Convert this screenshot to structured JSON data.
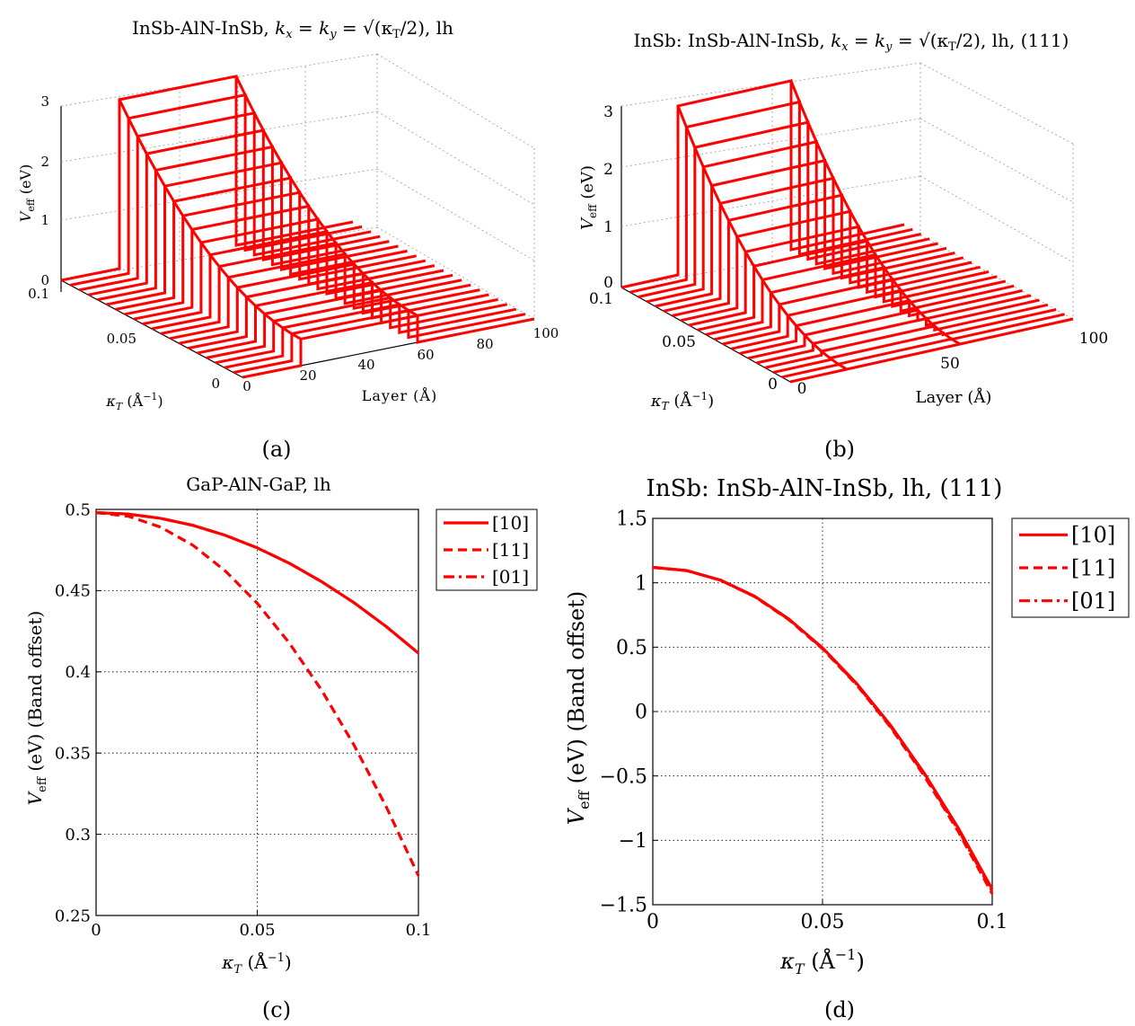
{
  "chart_data": [
    {
      "panel": "a",
      "type": "line",
      "projection": "3d",
      "title": "InSb-AlN-InSb, k_x = k_y = √(κ_T/2), lh",
      "caption": "(a)",
      "zlabel": "V_eff (eV)",
      "xlabel": "Layer (Å)",
      "ylabel": "κ_T (Å⁻¹)",
      "z_ticks": [
        "0",
        "1",
        "2",
        "3"
      ],
      "x_ticks": [
        "0",
        "20",
        "40",
        "60",
        "80",
        "100"
      ],
      "y_ticks": [
        "0",
        "0.05",
        "0.1"
      ],
      "zlim": [
        0,
        3
      ],
      "xlim": [
        0,
        100
      ],
      "ylim": [
        0,
        0.1
      ],
      "barrier_region": [
        20,
        60
      ],
      "barrier_height_at_kmax": 2.85,
      "barrier_height_at_k0": 0.45,
      "num_slices": 21
    },
    {
      "panel": "b",
      "type": "line",
      "projection": "3d",
      "title": "InSb: InSb-AlN-InSb, k_x = k_y = √(κ_T/2), lh, (111)",
      "caption": "(b)",
      "zlabel": "V_eff (eV)",
      "xlabel": "Layer (Å)",
      "ylabel": "κ_T (Å⁻¹)",
      "z_ticks": [
        "0",
        "1",
        "2",
        "3"
      ],
      "x_ticks": [
        "0",
        "50",
        "100"
      ],
      "y_ticks": [
        "0",
        "0.05",
        "0.1"
      ],
      "zlim": [
        0,
        3
      ],
      "xlim": [
        0,
        100
      ],
      "ylim": [
        0,
        0.1
      ],
      "barrier_region": [
        20,
        60
      ],
      "barrier_height_at_kmax": 2.85,
      "barrier_height_at_k0": 0.0,
      "num_slices": 21
    },
    {
      "panel": "c",
      "type": "line",
      "title": "GaP-AlN-GaP, lh",
      "caption": "(c)",
      "xlabel": "κ_T (Å⁻¹)",
      "ylabel": "V_eff (eV) (Band offset)",
      "xlim": [
        0,
        0.1
      ],
      "ylim": [
        0.25,
        0.5
      ],
      "x_ticks": [
        0,
        0.05,
        0.1
      ],
      "x_tick_labels": [
        "0",
        "0.05",
        "0.1"
      ],
      "y_ticks": [
        0.25,
        0.3,
        0.35,
        0.4,
        0.45,
        0.5
      ],
      "y_tick_labels": [
        "0.25",
        "0.3",
        "0.35",
        "0.4",
        "0.45",
        "0.5"
      ],
      "grid": true,
      "legend_position": "outside-top-right",
      "series": [
        {
          "name": "[10]",
          "style": "solid",
          "color": "#ff0000",
          "x": [
            0,
            0.01,
            0.02,
            0.03,
            0.04,
            0.05,
            0.06,
            0.07,
            0.08,
            0.09,
            0.1
          ],
          "values": [
            0.498,
            0.4971,
            0.4945,
            0.4902,
            0.4841,
            0.4763,
            0.4668,
            0.4555,
            0.4426,
            0.4279,
            0.4115
          ]
        },
        {
          "name": "[11]",
          "style": "dashed",
          "color": "#ff0000",
          "x": [
            0,
            0.01,
            0.02,
            0.03,
            0.04,
            0.05,
            0.06,
            0.07,
            0.08,
            0.09,
            0.1
          ],
          "values": [
            0.498,
            0.4958,
            0.4891,
            0.478,
            0.4623,
            0.4422,
            0.4176,
            0.3886,
            0.355,
            0.317,
            0.2745
          ]
        },
        {
          "name": "[01]",
          "style": "dashdot",
          "color": "#ff0000",
          "x": [
            0,
            0.01,
            0.02,
            0.03,
            0.04,
            0.05,
            0.06,
            0.07,
            0.08,
            0.09,
            0.1
          ],
          "values": [
            0.498,
            0.4971,
            0.4945,
            0.4902,
            0.4841,
            0.4763,
            0.4668,
            0.4555,
            0.4426,
            0.4279,
            0.4115
          ]
        }
      ]
    },
    {
      "panel": "d",
      "type": "line",
      "title": "InSb: InSb-AlN-InSb, lh, (111)",
      "caption": "(d)",
      "xlabel": "κ_T (Å⁻¹)",
      "ylabel": "V_eff (eV) (Band offset)",
      "xlim": [
        0,
        0.1
      ],
      "ylim": [
        -1.5,
        1.5
      ],
      "x_ticks": [
        0,
        0.05,
        0.1
      ],
      "x_tick_labels": [
        "0",
        "0.05",
        "0.1"
      ],
      "y_ticks": [
        -1.5,
        -1,
        -0.5,
        0,
        0.5,
        1,
        1.5
      ],
      "y_tick_labels": [
        "−1.5",
        "−1",
        "−0.5",
        "0",
        "0.5",
        "1",
        "1.5"
      ],
      "grid": true,
      "legend_position": "outside-top-right",
      "series": [
        {
          "name": "[10]",
          "style": "solid",
          "color": "#ff0000",
          "x": [
            0,
            0.01,
            0.02,
            0.03,
            0.04,
            0.05,
            0.06,
            0.07,
            0.08,
            0.09,
            0.1
          ],
          "values": [
            1.12,
            1.095,
            1.02,
            0.895,
            0.72,
            0.495,
            0.22,
            -0.105,
            -0.48,
            -0.905,
            -1.38
          ]
        },
        {
          "name": "[11]",
          "style": "dashed",
          "color": "#ff0000",
          "x": [
            0,
            0.01,
            0.02,
            0.03,
            0.04,
            0.05,
            0.06,
            0.07,
            0.08,
            0.09,
            0.1
          ],
          "values": [
            1.12,
            1.095,
            1.019,
            0.892,
            0.715,
            0.487,
            0.209,
            -0.12,
            -0.5,
            -0.932,
            -1.415
          ]
        },
        {
          "name": "[01]",
          "style": "dashdot",
          "color": "#ff0000",
          "x": [
            0,
            0.01,
            0.02,
            0.03,
            0.04,
            0.05,
            0.06,
            0.07,
            0.08,
            0.09,
            0.1
          ],
          "values": [
            1.12,
            1.095,
            1.02,
            0.894,
            0.718,
            0.491,
            0.214,
            -0.112,
            -0.49,
            -0.918,
            -1.398
          ]
        }
      ]
    }
  ]
}
